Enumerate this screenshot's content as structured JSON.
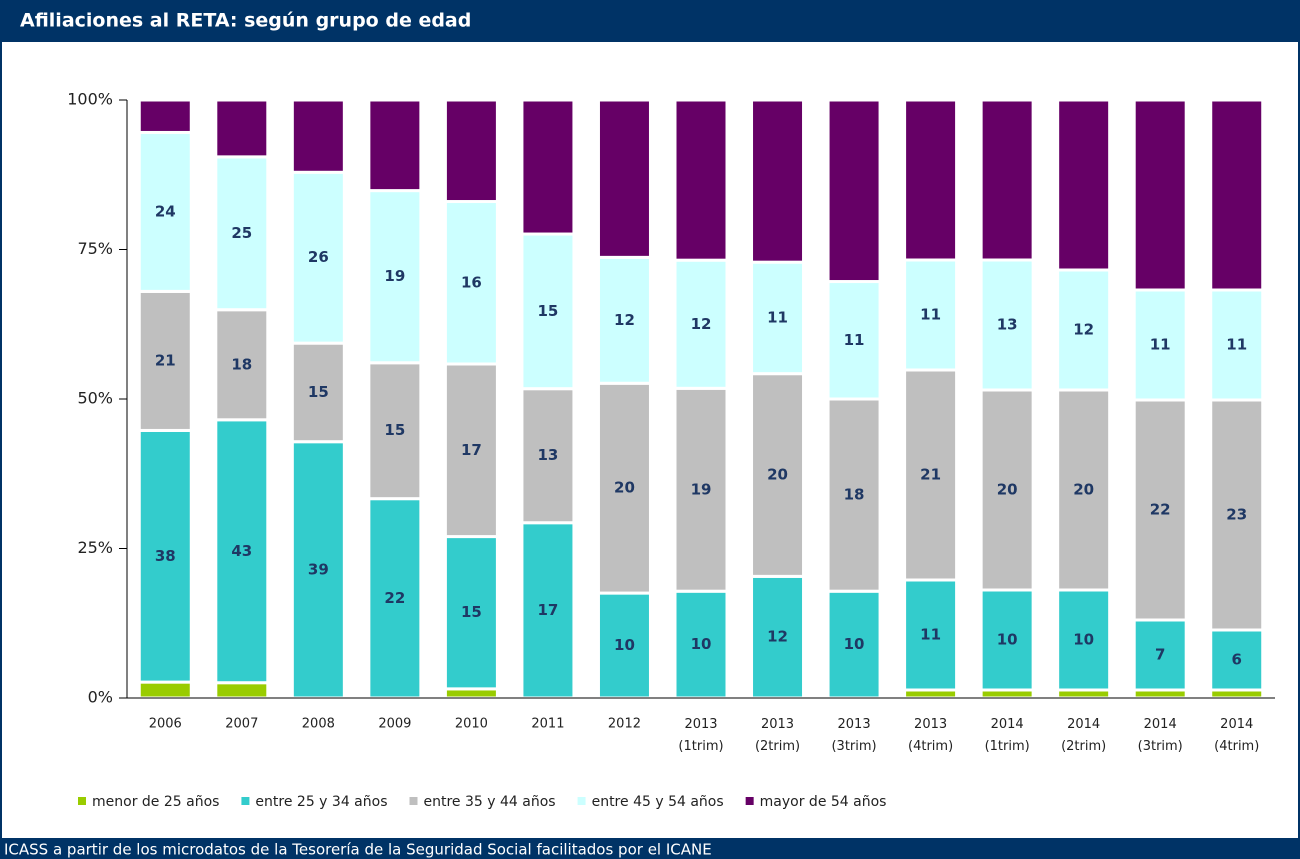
{
  "chart_data": {
    "type": "bar",
    "stacked": "percent",
    "title": "Afiliaciones al RETA: según grupo de edad",
    "source": "ICASS a partir de los microdatos de la Tesorería de la Seguridad Social facilitados por el ICANE",
    "categories": [
      "2006",
      "2007",
      "2008",
      "2009",
      "2010",
      "2011",
      "2012",
      "2013 (1trim)",
      "2013 (2trim)",
      "2013 (3trim)",
      "2013 (4trim)",
      "2014 (1trim)",
      "2014 (2trim)",
      "2014 (3trim)",
      "2014 (4trim)"
    ],
    "series": [
      {
        "name": "menor de 25 años",
        "color": "#99cc00",
        "labels": false,
        "values": [
          2.4,
          2.5,
          0,
          0,
          0.9,
          0,
          0,
          0,
          0,
          0,
          0.8,
          0.8,
          0.8,
          0.8,
          0.8
        ]
      },
      {
        "name": "entre 25 y 34 años",
        "color": "#33cccc",
        "labels": true,
        "values": [
          38,
          43,
          39,
          22,
          15,
          17,
          10,
          10,
          12,
          10,
          11,
          10,
          10,
          7,
          6
        ]
      },
      {
        "name": "entre 35 y 44 años",
        "color": "#bfbfbf",
        "labels": true,
        "values": [
          21,
          18,
          15,
          15,
          17,
          13,
          20,
          19,
          20,
          18,
          21,
          20,
          20,
          22,
          23
        ]
      },
      {
        "name": "entre 45 y 54 años",
        "color": "#ccffff",
        "labels": true,
        "values": [
          24,
          25,
          26,
          19,
          16,
          15,
          12,
          12,
          11,
          11,
          11,
          13,
          12,
          11,
          11
        ]
      },
      {
        "name": "mayor de 54 años",
        "color": "#660066",
        "labels": false,
        "values": [
          4.9,
          9.3,
          11,
          10,
          10,
          13,
          15,
          15,
          16,
          17,
          16,
          16,
          17,
          19,
          19
        ]
      }
    ],
    "ylim": [
      0,
      100
    ],
    "yticks": [
      {
        "value": 0,
        "label": "0%"
      },
      {
        "value": 25,
        "label": "25%"
      },
      {
        "value": 50,
        "label": "50%"
      },
      {
        "value": 75,
        "label": "75%"
      },
      {
        "value": 100,
        "label": "100%"
      }
    ],
    "legend": "bottom"
  }
}
